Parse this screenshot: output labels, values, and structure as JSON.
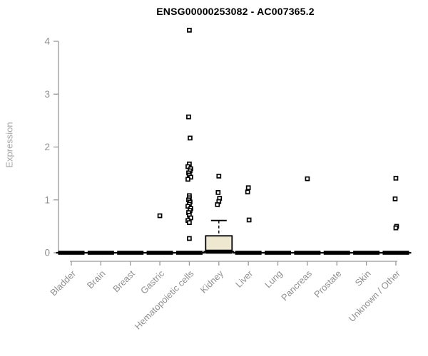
{
  "title": "ENSG00000253082 - AC007365.2",
  "chart_data": {
    "type": "boxplot",
    "title": "ENSG00000253082 - AC007365.2",
    "xlabel": "",
    "ylabel": "Expression",
    "ylim": [
      0,
      4
    ],
    "yticks": [
      0,
      1,
      2,
      3,
      4
    ],
    "grid": false,
    "legend": "none",
    "categories": [
      "Bladder",
      "Brain",
      "Breast",
      "Gastric",
      "Hematopoietic cells",
      "Kidney",
      "Liver",
      "Lung",
      "Pancreas",
      "Prostate",
      "Skin",
      "Unknown / Other"
    ],
    "boxes": [
      {
        "category": "Bladder",
        "whisker_low": 0,
        "q1": 0,
        "median": 0,
        "q3": 0,
        "whisker_high": 0
      },
      {
        "category": "Brain",
        "whisker_low": 0,
        "q1": 0,
        "median": 0,
        "q3": 0,
        "whisker_high": 0
      },
      {
        "category": "Breast",
        "whisker_low": 0,
        "q1": 0,
        "median": 0,
        "q3": 0,
        "whisker_high": 0
      },
      {
        "category": "Gastric",
        "whisker_low": 0,
        "q1": 0,
        "median": 0,
        "q3": 0,
        "whisker_high": 0
      },
      {
        "category": "Hematopoietic cells",
        "whisker_low": 0,
        "q1": 0,
        "median": 0,
        "q3": 0,
        "whisker_high": 0
      },
      {
        "category": "Kidney",
        "whisker_low": 0,
        "q1": 0,
        "median": 0.02,
        "q3": 0.32,
        "whisker_high": 0.61
      },
      {
        "category": "Liver",
        "whisker_low": 0,
        "q1": 0,
        "median": 0,
        "q3": 0,
        "whisker_high": 0
      },
      {
        "category": "Lung",
        "whisker_low": 0,
        "q1": 0,
        "median": 0,
        "q3": 0,
        "whisker_high": 0
      },
      {
        "category": "Pancreas",
        "whisker_low": 0,
        "q1": 0,
        "median": 0,
        "q3": 0,
        "whisker_high": 0
      },
      {
        "category": "Prostate",
        "whisker_low": 0,
        "q1": 0,
        "median": 0,
        "q3": 0,
        "whisker_high": 0
      },
      {
        "category": "Skin",
        "whisker_low": 0,
        "q1": 0,
        "median": 0,
        "q3": 0,
        "whisker_high": 0
      },
      {
        "category": "Unknown / Other",
        "whisker_low": 0,
        "q1": 0,
        "median": 0,
        "q3": 0,
        "whisker_high": 0
      }
    ],
    "points": {
      "Bladder": [],
      "Brain": [],
      "Breast": [],
      "Gastric": [
        0.7
      ],
      "Hematopoietic cells": [
        4.21,
        2.57,
        2.17,
        1.68,
        1.63,
        1.59,
        1.55,
        1.51,
        1.47,
        1.43,
        1.39,
        1.08,
        1.04,
        1.0,
        0.96,
        0.92,
        0.88,
        0.84,
        0.8,
        0.76,
        0.71,
        0.66,
        0.61,
        0.57,
        0.27
      ],
      "Kidney": [
        1.45,
        1.14,
        1.03,
        0.97,
        0.91
      ],
      "Liver": [
        1.23,
        1.15,
        0.62
      ],
      "Lung": [],
      "Pancreas": [
        1.4
      ],
      "Prostate": [],
      "Skin": [],
      "Unknown / Other": [
        1.41,
        1.02,
        0.5,
        0.47
      ]
    },
    "colors": {
      "box_fill": "#ede8cf",
      "box_border": "#000000",
      "median": "#000000",
      "point_stroke": "#000000",
      "point_fill": "#ffffff",
      "axis": "#999999",
      "tick_label": "#8f8f8f",
      "axis_label": "#a6a6a6",
      "title": "#000000",
      "background": "#ffffff"
    }
  }
}
